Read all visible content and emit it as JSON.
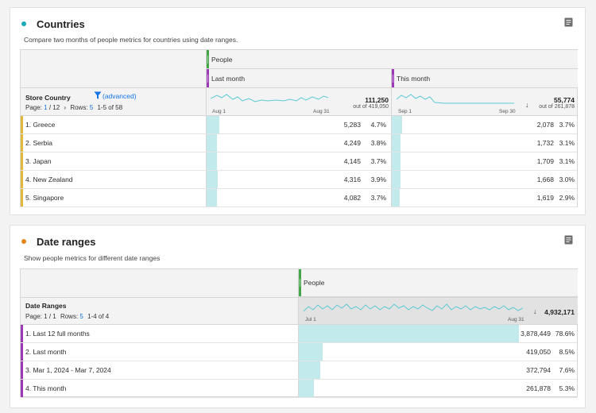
{
  "countries": {
    "title": "Countries",
    "dot_color": "#1aa9b8",
    "description": "Compare two months of people metrics for countries using date ranges.",
    "metric": "People",
    "metric_color": "#43a547",
    "dim_color": "#e0b93c",
    "range_color": "#9c3ab5",
    "dimension": "Store Country",
    "filter_label": "(advanced)",
    "pager": {
      "page_label": "Page:",
      "page": "1",
      "of": "/ 12",
      "rows_label": "Rows:",
      "rows": "5",
      "range": "1-5 of 58"
    },
    "col1": {
      "label": "Last month",
      "spark_start": "Aug 1",
      "spark_end": "Aug 31",
      "total": "111,250",
      "total_sub": "out of 419,050"
    },
    "col2": {
      "label": "This month",
      "spark_start": "Sep 1",
      "spark_end": "Sep 30",
      "total": "55,774",
      "total_sub": "out of 261,878"
    },
    "rows": [
      {
        "name": "1.  Greece",
        "v1": "5,283",
        "p1": "4.7%",
        "f1": 0.047,
        "v2": "2,078",
        "p2": "3.7%",
        "f2": 0.037
      },
      {
        "name": "2.  Serbia",
        "v1": "4,249",
        "p1": "3.8%",
        "f1": 0.038,
        "v2": "1,732",
        "p2": "3.1%",
        "f2": 0.031
      },
      {
        "name": "3.  Japan",
        "v1": "4,145",
        "p1": "3.7%",
        "f1": 0.037,
        "v2": "1,709",
        "p2": "3.1%",
        "f2": 0.031
      },
      {
        "name": "4.  New Zealand",
        "v1": "4,316",
        "p1": "3.9%",
        "f1": 0.039,
        "v2": "1,668",
        "p2": "3.0%",
        "f2": 0.03
      },
      {
        "name": "5.  Singapore",
        "v1": "4,082",
        "p1": "3.7%",
        "f1": 0.037,
        "v2": "1,619",
        "p2": "2.9%",
        "f2": 0.029
      }
    ]
  },
  "dates": {
    "title": "Date ranges",
    "dot_color": "#e68619",
    "description": "Show people metrics for different date ranges",
    "metric": "People",
    "dimension": "Date Ranges",
    "pager": {
      "page_label": "Page:",
      "page": "1 / 1",
      "rows_label": "Rows:",
      "rows": "5",
      "range": "1-4 of 4"
    },
    "spark_start": "Jul 1",
    "spark_end": "Aug 31",
    "total": "4,932,171",
    "rows": [
      {
        "name": "1.  Last 12 full months",
        "v": "3,878,449",
        "p": "78.6%",
        "f": 0.786
      },
      {
        "name": "2.  Last month",
        "v": "419,050",
        "p": "8.5%",
        "f": 0.085
      },
      {
        "name": "3.  Mar 1, 2024 - Mar 7, 2024",
        "v": "372,794",
        "p": "7.6%",
        "f": 0.076
      },
      {
        "name": "4.  This month",
        "v": "261,878",
        "p": "5.3%",
        "f": 0.053
      }
    ]
  }
}
